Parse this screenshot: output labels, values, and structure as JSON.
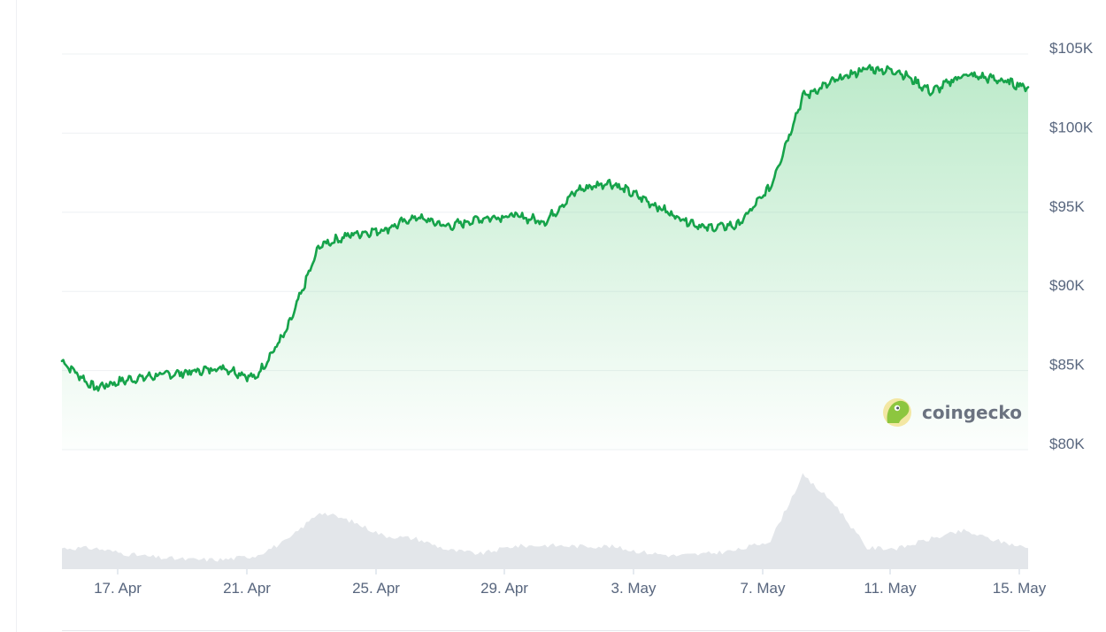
{
  "chart_data": {
    "type": "area",
    "title": "",
    "xlabel": "",
    "ylabel": "",
    "y_axis_position": "right",
    "ylim": [
      80000,
      105000
    ],
    "y_ticks": [
      {
        "value": 105000,
        "label": "$105K"
      },
      {
        "value": 100000,
        "label": "$100K"
      },
      {
        "value": 95000,
        "label": "$95K"
      },
      {
        "value": 90000,
        "label": "$90K"
      },
      {
        "value": 85000,
        "label": "$85K"
      },
      {
        "value": 80000,
        "label": "$80K"
      }
    ],
    "x_ticks": [
      "17. Apr",
      "21. Apr",
      "25. Apr",
      "29. Apr",
      "3. May",
      "7. May",
      "11. May",
      "15. May"
    ],
    "grid": "horizontal",
    "colors": {
      "line": "#16a34a",
      "fill_top": "#86d99f",
      "volume": "#e3e6ea",
      "grid": "#eef0f3",
      "tick_text": "#58667e"
    },
    "watermark": {
      "text": "coingecko",
      "icon": "gecko-logo-icon"
    },
    "series": [
      {
        "type": "line",
        "x": [
          "15. Apr",
          "16. Apr",
          "17. Apr",
          "18. Apr",
          "19. Apr",
          "20. Apr",
          "21. Apr",
          "22. Apr",
          "23. Apr",
          "24. Apr",
          "25. Apr",
          "26. Apr",
          "27. Apr",
          "28. Apr",
          "29. Apr",
          "30. Apr",
          "1. May",
          "2. May",
          "3. May",
          "4. May",
          "5. May",
          "6. May",
          "7. May",
          "8. May",
          "9. May",
          "10. May",
          "11. May",
          "12. May",
          "13. May",
          "14. May",
          "15. May"
        ],
        "values": [
          85600,
          83900,
          84400,
          84700,
          84900,
          85200,
          84500,
          87600,
          92900,
          93600,
          93900,
          94700,
          94100,
          94600,
          94800,
          94400,
          96400,
          96900,
          95900,
          94800,
          94000,
          94200,
          96600,
          102300,
          103300,
          104100,
          103900,
          102600,
          103700,
          103400,
          102900
        ]
      },
      {
        "type": "volume",
        "values": [
          0.22,
          0.22,
          0.16,
          0.12,
          0.1,
          0.1,
          0.14,
          0.3,
          0.6,
          0.5,
          0.35,
          0.32,
          0.2,
          0.16,
          0.24,
          0.25,
          0.24,
          0.24,
          0.18,
          0.14,
          0.16,
          0.2,
          0.3,
          0.98,
          0.68,
          0.22,
          0.22,
          0.32,
          0.4,
          0.3,
          0.22
        ]
      }
    ]
  }
}
